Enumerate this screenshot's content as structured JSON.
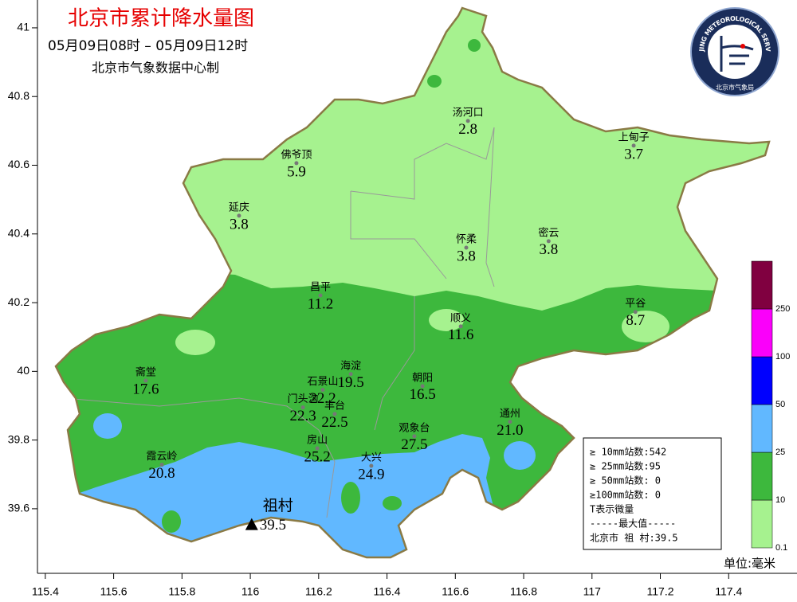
{
  "map": {
    "title": "北京市累计降水量图",
    "period": "05月09日08时 – 05月09日12时",
    "producer": "北京市气象数据中心制",
    "xlim": [
      115.377,
      117.6
    ],
    "ylim": [
      39.412,
      41.081
    ],
    "xticks": [
      115.4,
      115.6,
      115.8,
      116,
      116.2,
      116.4,
      116.6,
      116.8,
      117,
      117.2,
      117.4
    ],
    "yticks": [
      39.6,
      39.8,
      40,
      40.2,
      40.4,
      40.6,
      40.8,
      41
    ],
    "stations": [
      {
        "name": "汤河口",
        "value": 2.8,
        "lon": 116.637,
        "lat": 40.729
      },
      {
        "name": "上甸子",
        "value": 3.7,
        "lon": 117.122,
        "lat": 40.657
      },
      {
        "name": "佛爷顶",
        "value": 5.9,
        "lon": 116.135,
        "lat": 40.606
      },
      {
        "name": "延庆",
        "value": 3.8,
        "lon": 115.967,
        "lat": 40.453
      },
      {
        "name": "怀柔",
        "value": 3.8,
        "lon": 116.632,
        "lat": 40.36
      },
      {
        "name": "密云",
        "value": 3.8,
        "lon": 116.873,
        "lat": 40.379
      },
      {
        "name": "昌平",
        "value": 11.2,
        "lon": 116.205,
        "lat": 40.221
      },
      {
        "name": "平谷",
        "value": 8.7,
        "lon": 117.127,
        "lat": 40.173
      },
      {
        "name": "顺义",
        "value": 11.6,
        "lon": 116.616,
        "lat": 40.131
      },
      {
        "name": "海淀",
        "value": 19.5,
        "lon": 116.294,
        "lat": 39.992
      },
      {
        "name": "斋堂",
        "value": 17.6,
        "lon": 115.694,
        "lat": 39.973
      },
      {
        "name": "朝阳",
        "value": 16.5,
        "lon": 116.504,
        "lat": 39.957
      },
      {
        "name": "石景山",
        "value": 22.2,
        "lon": 116.212,
        "lat": 39.946
      },
      {
        "name": "门头沟",
        "value": 22.3,
        "lon": 116.154,
        "lat": 39.895
      },
      {
        "name": "丰台",
        "value": 22.5,
        "lon": 116.247,
        "lat": 39.876
      },
      {
        "name": "通州",
        "value": 21.0,
        "value_label": "21.0",
        "lon": 116.76,
        "lat": 39.853
      },
      {
        "name": "观象台",
        "value": 27.5,
        "lon": 116.48,
        "lat": 39.811
      },
      {
        "name": "房山",
        "value": 25.2,
        "lon": 116.196,
        "lat": 39.776
      },
      {
        "name": "大兴",
        "value": 24.9,
        "lon": 116.354,
        "lat": 39.725
      },
      {
        "name": "霞云岭",
        "value": 20.8,
        "lon": 115.741,
        "lat": 39.728
      }
    ],
    "max_station": {
      "name": "祖村",
      "value": 39.5,
      "lon": 116.004,
      "lat": 39.552
    },
    "legend": [
      {
        "value": 0.1,
        "color": "#a6f28f"
      },
      {
        "value": 10,
        "color": "#3db83d"
      },
      {
        "value": 25,
        "color": "#61b8ff"
      },
      {
        "value": 50,
        "color": "#0000fe"
      },
      {
        "value": 100,
        "color": "#fa00fa"
      },
      {
        "value": 250,
        "color": "#800040"
      }
    ],
    "stats": [
      "≥ 10mm站数:542",
      "≥ 25mm站数:95",
      "≥ 50mm站数: 0",
      "≥100mm站数: 0",
      "T表示微量",
      "-----最大值-----",
      "北京市 祖  村:39.5"
    ],
    "unit": "单位:毫米",
    "logo": {
      "ring": "BEIJING METEOROLOGICAL SERVICE",
      "name": "北京市气象局"
    }
  }
}
